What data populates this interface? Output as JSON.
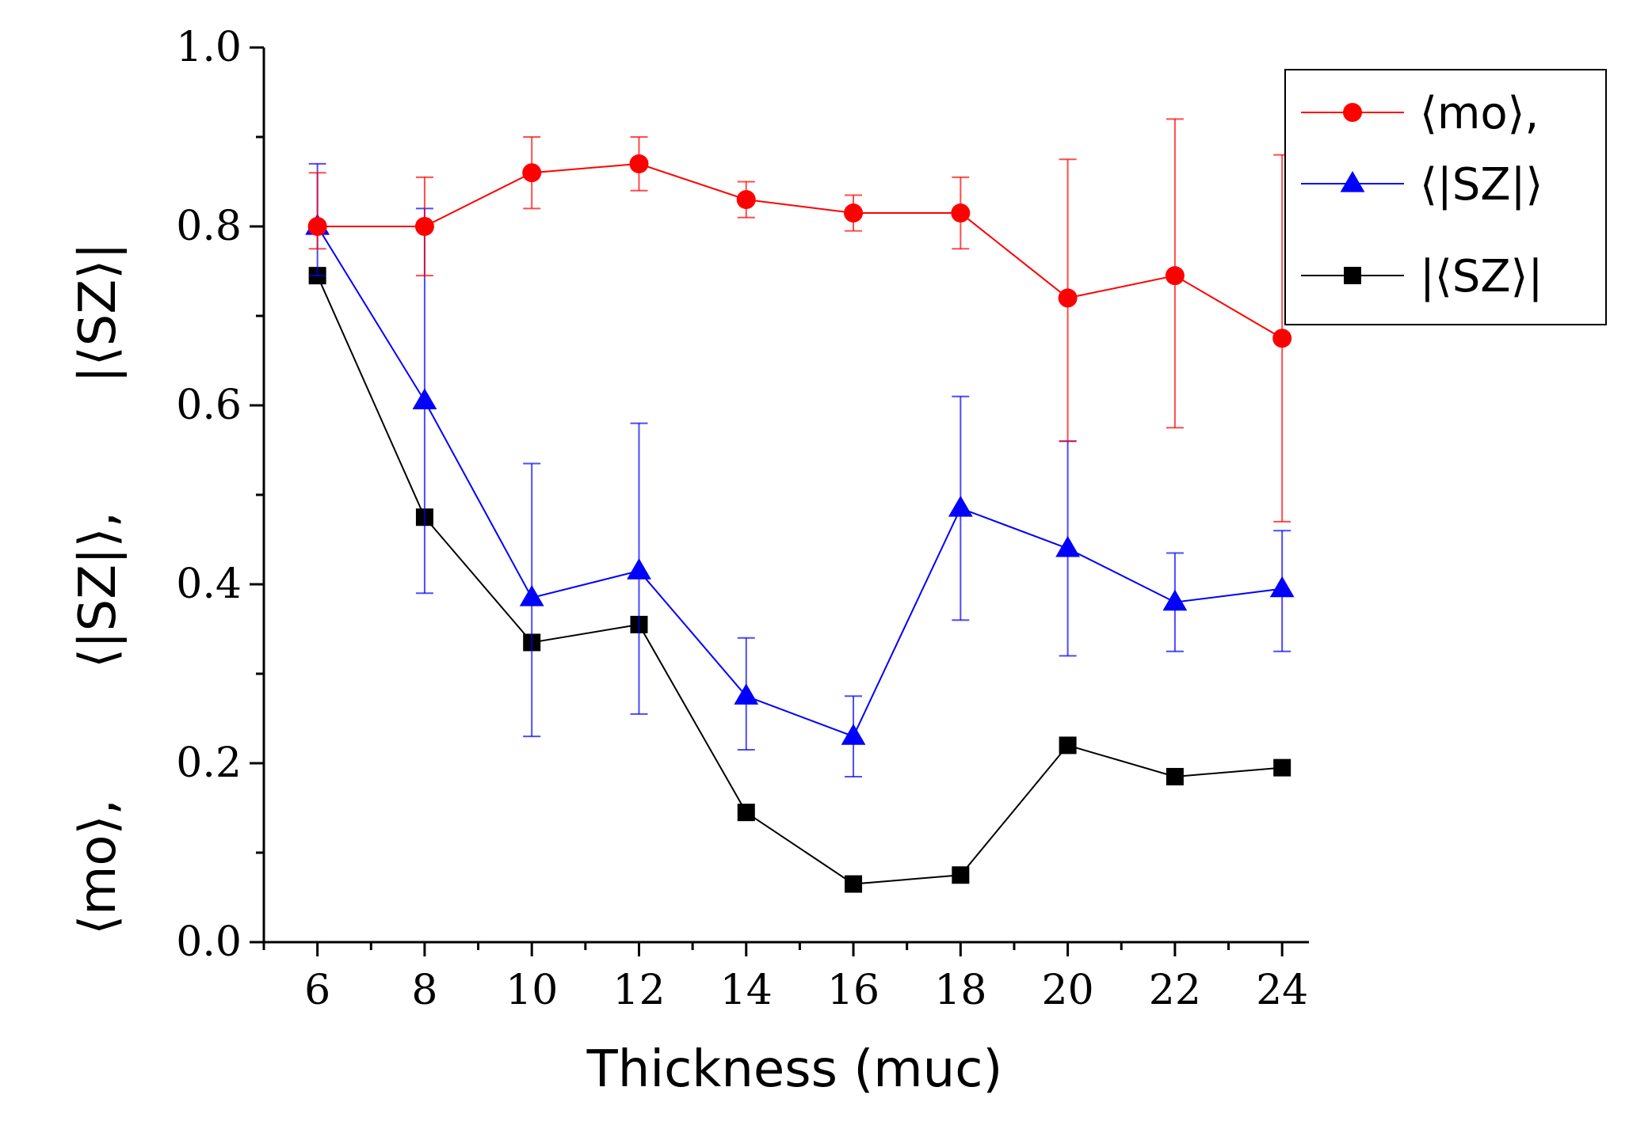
{
  "chart_data": {
    "type": "line",
    "title": "",
    "xlabel": "Thickness (muc)",
    "ylabel": "⟨mo⟩,  ⟨|SZ|⟩,  |⟨SZ⟩|",
    "ylabel_parts": [
      "⟨mo⟩,",
      "⟨|SZ|⟩,",
      "|⟨SZ⟩|"
    ],
    "x": [
      6,
      8,
      10,
      12,
      14,
      16,
      18,
      20,
      22,
      24
    ],
    "xlim": [
      5,
      24.5
    ],
    "ylim": [
      0,
      1
    ],
    "xticks": [
      "6",
      "8",
      "10",
      "12",
      "14",
      "16",
      "18",
      "20",
      "22",
      "24"
    ],
    "yticks": [
      "0.0",
      "0.2",
      "0.4",
      "0.6",
      "0.8",
      "1.0"
    ],
    "legend_position": "top-right",
    "series": [
      {
        "name": "⟨mo⟩,",
        "color": "#ff0000",
        "marker": "circle",
        "values": [
          0.8,
          0.8,
          0.86,
          0.87,
          0.83,
          0.815,
          0.815,
          0.72,
          0.745,
          0.675
        ],
        "err_low": [
          0.775,
          0.745,
          0.82,
          0.84,
          0.81,
          0.795,
          0.775,
          0.56,
          0.575,
          0.47
        ],
        "err_high": [
          0.86,
          0.855,
          0.9,
          0.9,
          0.85,
          0.835,
          0.855,
          0.875,
          0.92,
          0.88
        ]
      },
      {
        "name": "⟨|SZ|⟩",
        "color": "#0000ff",
        "marker": "triangle",
        "values": [
          0.8,
          0.605,
          0.385,
          0.415,
          0.275,
          0.23,
          0.485,
          0.44,
          0.38,
          0.395
        ],
        "err_low": [
          0.745,
          0.39,
          0.23,
          0.255,
          0.215,
          0.185,
          0.36,
          0.32,
          0.325,
          0.325
        ],
        "err_high": [
          0.87,
          0.82,
          0.535,
          0.58,
          0.34,
          0.275,
          0.61,
          0.56,
          0.435,
          0.46
        ]
      },
      {
        "name": "|⟨SZ⟩|",
        "color": "#000000",
        "marker": "square",
        "values": [
          0.745,
          0.475,
          0.335,
          0.355,
          0.145,
          0.065,
          0.075,
          0.22,
          0.185,
          0.195
        ]
      }
    ]
  }
}
